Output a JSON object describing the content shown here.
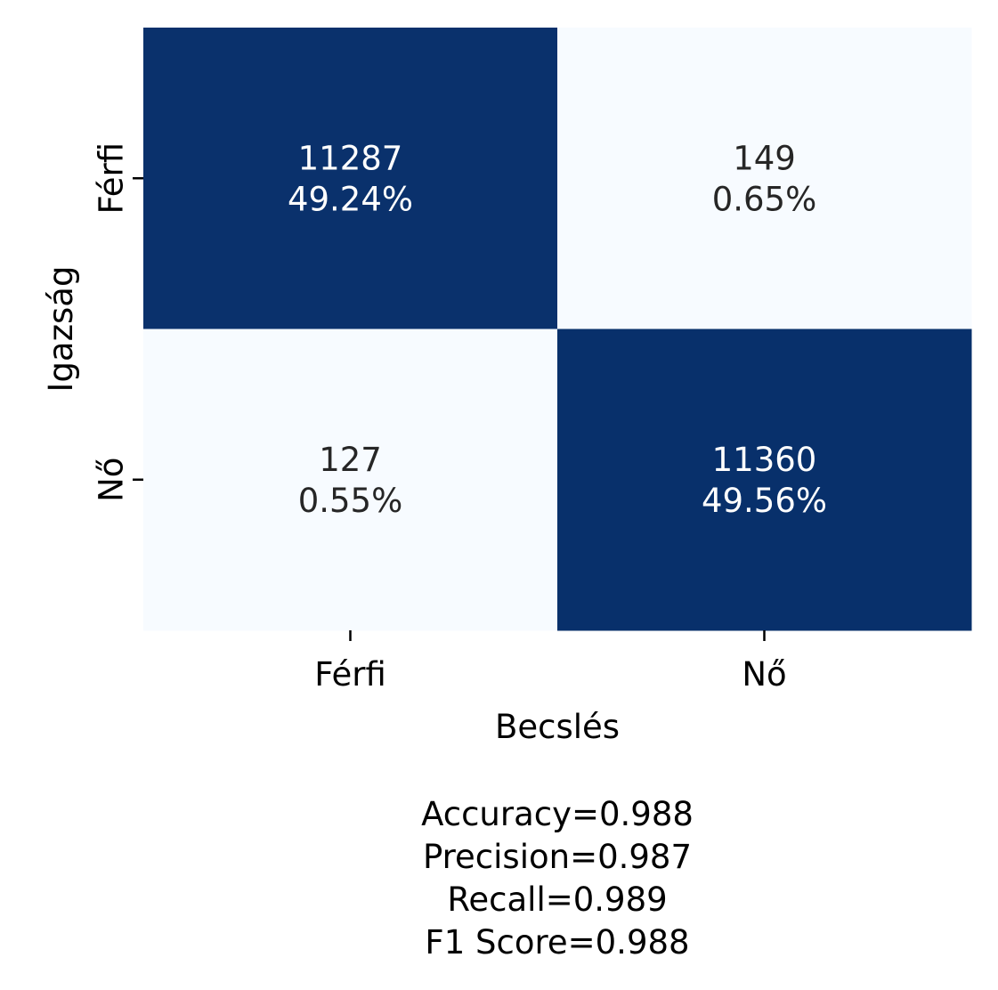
{
  "chart_data": {
    "type": "heatmap",
    "xlabel": "Becslés",
    "ylabel": "Igazság",
    "x_categories": [
      "Férfi",
      "Nő"
    ],
    "y_categories": [
      "Férfi",
      "Nő"
    ],
    "values": [
      [
        11287,
        149
      ],
      [
        127,
        11360
      ]
    ],
    "percentages": [
      [
        "49.24%",
        "0.65%"
      ],
      [
        "0.55%",
        "49.56%"
      ]
    ],
    "cell_labels": [
      [
        [
          "11287",
          "49.24%"
        ],
        [
          "149",
          "0.65%"
        ]
      ],
      [
        [
          "127",
          "0.55%"
        ],
        [
          "11360",
          "49.56%"
        ]
      ]
    ],
    "colormap": {
      "low": "#f7fbff",
      "high": "#08306b",
      "text_on_dark": "#ffffff",
      "text_on_light": "#262626"
    },
    "colorbar": false,
    "grid": false,
    "metrics": [
      "Accuracy=0.988",
      "Precision=0.987",
      "Recall=0.989",
      "F1 Score=0.988"
    ]
  }
}
